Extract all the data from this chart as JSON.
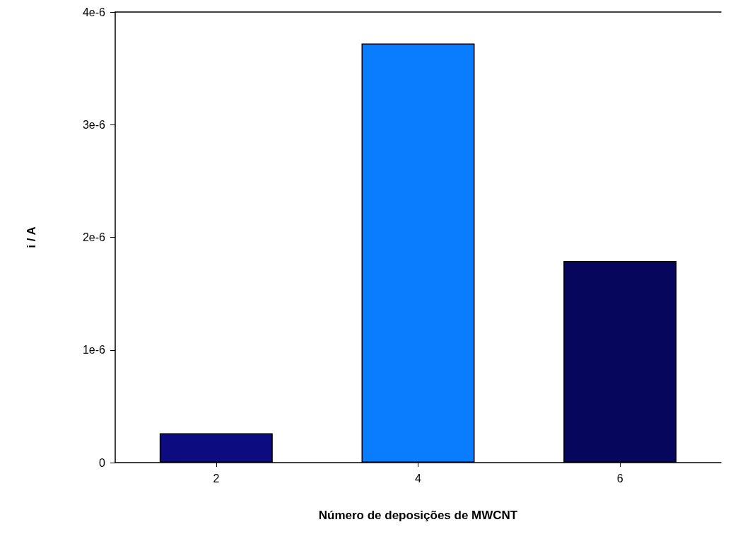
{
  "chart_data": {
    "type": "bar",
    "xlabel": "Número de deposições de MWCNT",
    "ylabel": "i / A",
    "categories": [
      "2",
      "4",
      "6"
    ],
    "values": [
      2.6e-07,
      3.72e-06,
      1.79e-06
    ],
    "colors": [
      "#0c0c80",
      "#0a7dff",
      "#06065c"
    ],
    "ylim": [
      0,
      4e-06
    ],
    "yticks": [
      0,
      {
        "value": 1e-06,
        "label": "1e-6"
      },
      {
        "value": 2e-06,
        "label": "2e-6"
      },
      {
        "value": 3e-06,
        "label": "3e-6"
      },
      {
        "value": 4e-06,
        "label": "4e-6"
      }
    ],
    "grid": false
  }
}
